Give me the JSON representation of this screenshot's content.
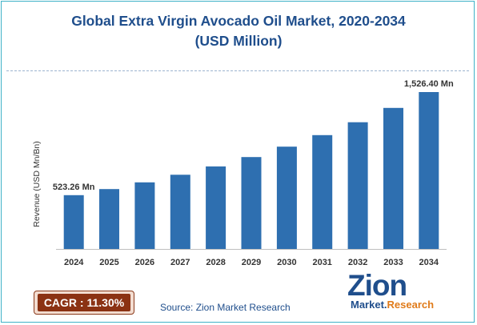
{
  "chart_data": {
    "type": "bar",
    "title_line1": "Global Extra Virgin Avocado Oil Market, 2020-2034",
    "title_line2": "(USD Million)",
    "ylabel": "Revenue (USD Mn/Bn)",
    "xlabel": "",
    "categories": [
      "2024",
      "2025",
      "2026",
      "2027",
      "2028",
      "2029",
      "2030",
      "2031",
      "2032",
      "2033",
      "2034"
    ],
    "values": [
      523.26,
      582.4,
      648.3,
      721.6,
      803.2,
      893.9,
      995.0,
      1107.5,
      1232.7,
      1372.1,
      1526.4
    ],
    "ylim": [
      0,
      1800
    ],
    "annotations": [
      {
        "category": "2024",
        "text": "523.26 Mn"
      },
      {
        "category": "2034",
        "text": "1,526.40 Mn"
      }
    ],
    "bar_color": "#2e6fb0",
    "grid": false
  },
  "cagr": "CAGR : 11.30%",
  "source": "Source: Zion Market Research",
  "logo": {
    "main": "Zion",
    "sub_1": "Market.",
    "sub_2": "Research"
  },
  "colors": {
    "title": "#1f4e8c",
    "border": "#3fb2c8",
    "cagr_bg": "#8b3213"
  }
}
